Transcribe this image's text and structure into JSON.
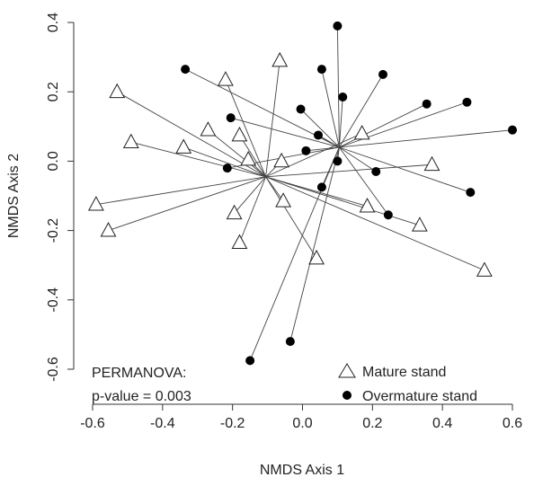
{
  "chart_data": {
    "type": "scatter",
    "title": "",
    "xlabel": "NMDS Axis 1",
    "ylabel": "NMDS Axis 2",
    "xlim": [
      -0.6,
      0.6
    ],
    "ylim": [
      -0.6,
      0.4
    ],
    "x_ticks": [
      "-0.6",
      "-0.4",
      "-0.2",
      "0.0",
      "0.2",
      "0.4",
      "0.6"
    ],
    "y_ticks": [
      "-0.6",
      "-0.4",
      "-0.2",
      "0.0",
      "0.2",
      "0.4"
    ],
    "grid": false,
    "legend_position": "bottom-right",
    "series": [
      {
        "name": "Mature stand",
        "marker": "open-triangle",
        "centroid": [
          -0.105,
          -0.045
        ],
        "points": [
          [
            -0.53,
            0.2
          ],
          [
            -0.49,
            0.055
          ],
          [
            -0.34,
            0.04
          ],
          [
            -0.27,
            0.09
          ],
          [
            -0.22,
            0.235
          ],
          [
            -0.18,
            0.075
          ],
          [
            -0.155,
            0.005
          ],
          [
            -0.065,
            0.29
          ],
          [
            -0.06,
            0.0
          ],
          [
            -0.59,
            -0.125
          ],
          [
            -0.555,
            -0.2
          ],
          [
            -0.18,
            -0.235
          ],
          [
            -0.195,
            -0.15
          ],
          [
            -0.055,
            -0.115
          ],
          [
            0.04,
            -0.28
          ],
          [
            0.185,
            -0.13
          ],
          [
            0.335,
            -0.185
          ],
          [
            0.52,
            -0.315
          ],
          [
            0.37,
            -0.01
          ],
          [
            0.17,
            0.08
          ]
        ]
      },
      {
        "name": "Overmature stand",
        "marker": "filled-circle",
        "centroid": [
          0.105,
          0.04
        ],
        "points": [
          [
            -0.335,
            0.265
          ],
          [
            -0.205,
            0.125
          ],
          [
            -0.215,
            -0.02
          ],
          [
            -0.005,
            0.15
          ],
          [
            0.01,
            0.03
          ],
          [
            0.045,
            0.075
          ],
          [
            0.055,
            0.265
          ],
          [
            0.1,
            0.39
          ],
          [
            0.115,
            0.185
          ],
          [
            0.23,
            0.25
          ],
          [
            0.355,
            0.165
          ],
          [
            0.47,
            0.17
          ],
          [
            0.6,
            0.09
          ],
          [
            0.21,
            -0.03
          ],
          [
            0.1,
            0.0
          ],
          [
            0.055,
            -0.075
          ],
          [
            0.245,
            -0.155
          ],
          [
            0.48,
            -0.09
          ],
          [
            -0.035,
            -0.52
          ],
          [
            -0.15,
            -0.575
          ]
        ]
      }
    ],
    "annotation": [
      "PERMANOVA:",
      "p-value = 0.003"
    ]
  }
}
